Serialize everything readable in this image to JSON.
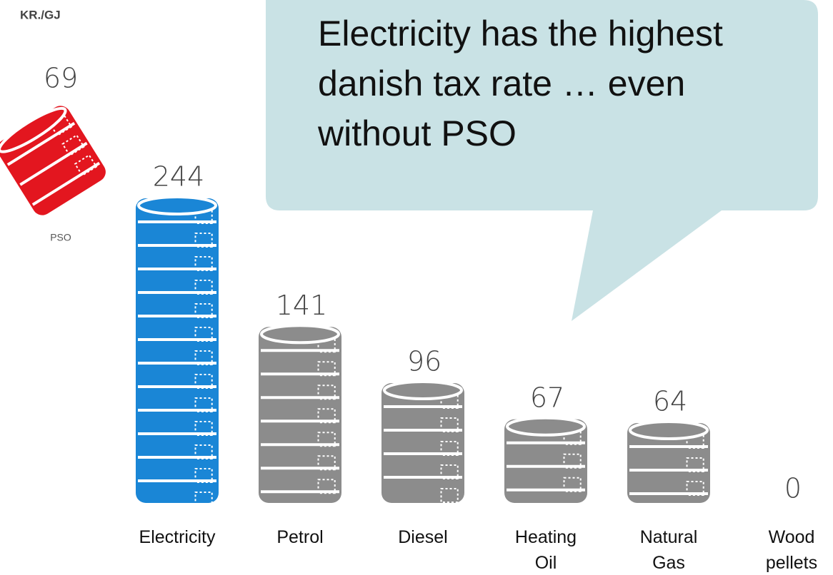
{
  "units": "KR./GJ",
  "callout": "Electricity has the highest danish tax rate … even without PSO",
  "chart_data": {
    "type": "bar",
    "categories": [
      "Electricity",
      "Petrol",
      "Diesel",
      "Heating Oil",
      "Natural Gas",
      "Wood pellets"
    ],
    "values": [
      244,
      141,
      96,
      67,
      64,
      0
    ],
    "colors": [
      "#1a86d6",
      "#8c8c8c",
      "#8c8c8c",
      "#8c8c8c",
      "#8c8c8c",
      "#8c8c8c"
    ],
    "pso": {
      "label": "PSO",
      "value": 69,
      "color": "#e3161f"
    }
  }
}
